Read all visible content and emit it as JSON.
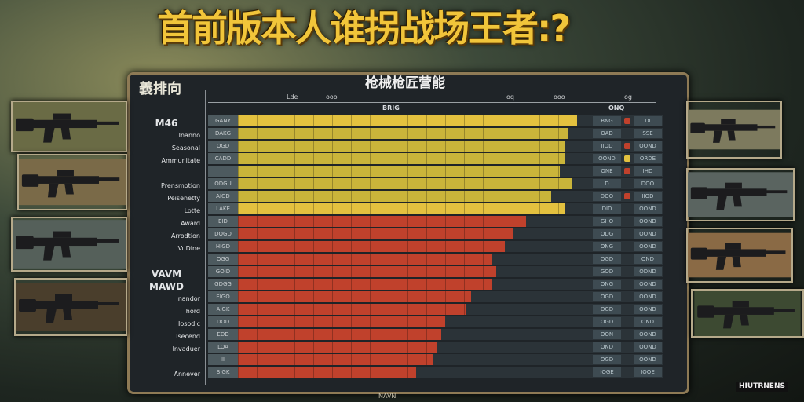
{
  "title": "首前版本人谁拐战场王者:?",
  "panel": {
    "left_title": "義排向",
    "right_title": "枪械枪匠营能",
    "top_ticks": [
      "Lde",
      "ooo",
      "oq",
      "ooo",
      "og"
    ],
    "column_headers": [
      "BRIG",
      "ONQ"
    ],
    "footer": "NAVN"
  },
  "watermark": "HIUTRNENS",
  "colors": {
    "yellow": "#c9b43a",
    "gold": "#e3c13f",
    "red": "#c0412c",
    "panel": "#1f2428",
    "frame": "#8e7a55"
  },
  "row_labels": [
    "M46",
    "Inanno",
    "Seasonal",
    "Ammunitate",
    "",
    "Prensmotion",
    "Peisenetty",
    "Lotte",
    "Award",
    "Arrodtion",
    "VuDine",
    "",
    "VAVM",
    "MAWD",
    "Inandor",
    "hord",
    "Iosodic",
    "Isecend",
    "Invaduer",
    "",
    "Annever"
  ],
  "rows": [
    {
      "tag": "GANY",
      "fill": 87,
      "color": "gold",
      "cells": [
        "BNG",
        "DI"
      ],
      "chip": "red"
    },
    {
      "tag": "DAKG",
      "fill": 85,
      "color": "yellow",
      "cells": [
        "OAD",
        "SSE"
      ],
      "chip": ""
    },
    {
      "tag": "OGD",
      "fill": 84,
      "color": "yellow",
      "cells": [
        "IIOD",
        "OOND"
      ],
      "chip": "red"
    },
    {
      "tag": "CADD",
      "fill": 84,
      "color": "yellow",
      "cells": [
        "OOND",
        "ORDE"
      ],
      "chip": "gold"
    },
    {
      "tag": "",
      "fill": 83,
      "color": "yellow",
      "cells": [
        "ONE",
        "IHD"
      ],
      "chip": "red"
    },
    {
      "tag": "ODGU",
      "fill": 86,
      "color": "yellow",
      "cells": [
        "D",
        "DOO"
      ],
      "chip": ""
    },
    {
      "tag": "AIGD",
      "fill": 81,
      "color": "yellow",
      "cells": [
        "DOO",
        "IIOD"
      ],
      "chip": "red"
    },
    {
      "tag": "LAKE",
      "fill": 84,
      "color": "gold",
      "cells": [
        "DID",
        "OOND"
      ],
      "chip": ""
    },
    {
      "tag": "EID",
      "fill": 75,
      "color": "red",
      "cells": [
        "GHO",
        "OOND"
      ],
      "chip": ""
    },
    {
      "tag": "DOGD",
      "fill": 72,
      "color": "red",
      "cells": [
        "ODG",
        "OOND"
      ],
      "chip": ""
    },
    {
      "tag": "HIGD",
      "fill": 70,
      "color": "red",
      "cells": [
        "ONG",
        "OOND"
      ],
      "chip": ""
    },
    {
      "tag": "OGG",
      "fill": 67,
      "color": "red",
      "cells": [
        "OGD",
        "OND"
      ],
      "chip": ""
    },
    {
      "tag": "GOID",
      "fill": 68,
      "color": "red",
      "cells": [
        "GOD",
        "ODND"
      ],
      "chip": ""
    },
    {
      "tag": "GDGG",
      "fill": 67,
      "color": "red",
      "cells": [
        "ONG",
        "OOND"
      ],
      "chip": ""
    },
    {
      "tag": "EIGO",
      "fill": 62,
      "color": "red",
      "cells": [
        "OGD",
        "OOND"
      ],
      "chip": ""
    },
    {
      "tag": "AIGK",
      "fill": 61,
      "color": "red",
      "cells": [
        "OGD",
        "OOND"
      ],
      "chip": ""
    },
    {
      "tag": "DOD",
      "fill": 56,
      "color": "red",
      "cells": [
        "OGD",
        "OND"
      ],
      "chip": ""
    },
    {
      "tag": "EDD",
      "fill": 55,
      "color": "red",
      "cells": [
        "OON",
        "OOND"
      ],
      "chip": ""
    },
    {
      "tag": "LOA",
      "fill": 54,
      "color": "red",
      "cells": [
        "OND",
        "OOND"
      ],
      "chip": ""
    },
    {
      "tag": "III",
      "fill": 53,
      "color": "red",
      "cells": [
        "OGD",
        "OOND"
      ],
      "chip": ""
    },
    {
      "tag": "BIGK",
      "fill": 49,
      "color": "red",
      "cells": [
        "IOGE",
        "IOOE"
      ],
      "chip": ""
    }
  ],
  "weapon_images": {
    "left": [
      "assault-rifle",
      "carbine",
      "rifle-m4",
      "rifle-scoped"
    ],
    "right": [
      "rifle-outdoor",
      "rifle-dark",
      "rifle-sand",
      "sniper-rifle"
    ]
  }
}
